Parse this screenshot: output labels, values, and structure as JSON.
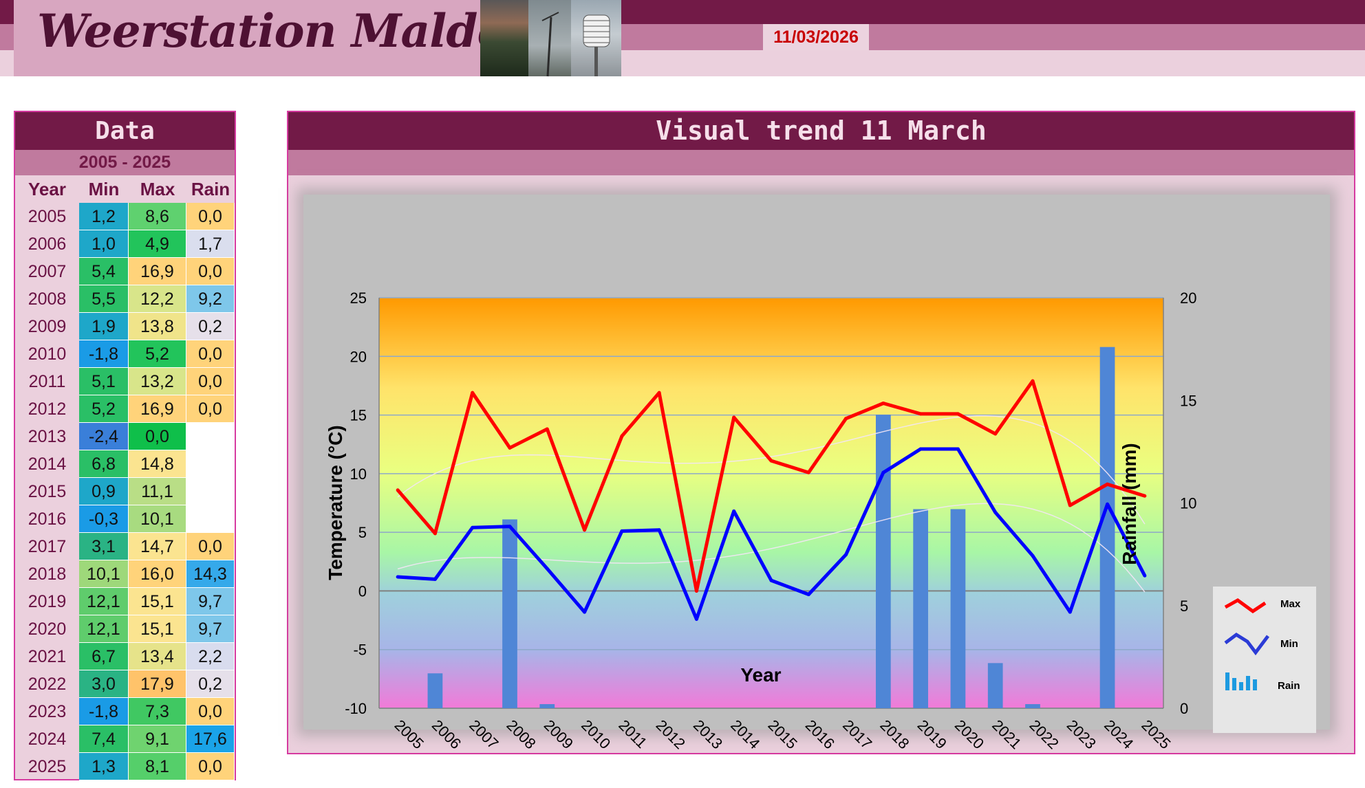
{
  "header": {
    "title": "Weerstation Malderen",
    "date": "11/03/2026",
    "photos": [
      "sunset-photo",
      "mast-photo",
      "screen-photo"
    ]
  },
  "data_table": {
    "title": "Data",
    "range": "2005 - 2025",
    "columns": [
      "Year",
      "Min",
      "Max",
      "Rain"
    ],
    "rows": [
      {
        "year": "2005",
        "min": "1,2",
        "max": "8,6",
        "rain": "0,0",
        "min_color": "#1ea7c9",
        "max_color": "#5fd16f",
        "rain_color": "#ffd37a"
      },
      {
        "year": "2006",
        "min": "1,0",
        "max": "4,9",
        "rain": "1,7",
        "min_color": "#1ea7c9",
        "max_color": "#22c45b",
        "rain_color": "#dadeee"
      },
      {
        "year": "2007",
        "min": "5,4",
        "max": "16,9",
        "rain": "0,0",
        "min_color": "#2abf66",
        "max_color": "#ffd37a",
        "rain_color": "#ffd37a"
      },
      {
        "year": "2008",
        "min": "5,5",
        "max": "12,2",
        "rain": "9,2",
        "min_color": "#2abf66",
        "max_color": "#d8e58a",
        "rain_color": "#7ec7ea"
      },
      {
        "year": "2009",
        "min": "1,9",
        "max": "13,8",
        "rain": "0,2",
        "min_color": "#1ea7c9",
        "max_color": "#f0e48a",
        "rain_color": "#e6e0ea"
      },
      {
        "year": "2010",
        "min": "-1,8",
        "max": "5,2",
        "rain": "0,0",
        "min_color": "#1a9be6",
        "max_color": "#22c45b",
        "rain_color": "#ffd37a"
      },
      {
        "year": "2011",
        "min": "5,1",
        "max": "13,2",
        "rain": "0,0",
        "min_color": "#2abf66",
        "max_color": "#d8e58a",
        "rain_color": "#ffd37a"
      },
      {
        "year": "2012",
        "min": "5,2",
        "max": "16,9",
        "rain": "0,0",
        "min_color": "#2abf66",
        "max_color": "#ffd37a",
        "rain_color": "#ffd37a"
      },
      {
        "year": "2013",
        "min": "-2,4",
        "max": "0,0",
        "rain": "",
        "min_color": "#3a7fd9",
        "max_color": "#0fbf4a",
        "rain_color": "#ffffff"
      },
      {
        "year": "2014",
        "min": "6,8",
        "max": "14,8",
        "rain": "",
        "min_color": "#2abf66",
        "max_color": "#fbe490",
        "rain_color": "#ffffff"
      },
      {
        "year": "2015",
        "min": "0,9",
        "max": "11,1",
        "rain": "",
        "min_color": "#1ea7c9",
        "max_color": "#b9de86",
        "rain_color": "#ffffff"
      },
      {
        "year": "2016",
        "min": "-0,3",
        "max": "10,1",
        "rain": "",
        "min_color": "#1a9be6",
        "max_color": "#a8db80",
        "rain_color": "#ffffff"
      },
      {
        "year": "2017",
        "min": "3,1",
        "max": "14,7",
        "rain": "0,0",
        "min_color": "#2ab384",
        "max_color": "#fbe490",
        "rain_color": "#ffd37a"
      },
      {
        "year": "2018",
        "min": "10,1",
        "max": "16,0",
        "rain": "14,3",
        "min_color": "#9ed87a",
        "max_color": "#ffd37a",
        "rain_color": "#35a9ea"
      },
      {
        "year": "2019",
        "min": "12,1",
        "max": "15,1",
        "rain": "9,7",
        "min_color": "#5fcc6c",
        "max_color": "#fbe490",
        "rain_color": "#7ec7ea"
      },
      {
        "year": "2020",
        "min": "12,1",
        "max": "15,1",
        "rain": "9,7",
        "min_color": "#5fcc6c",
        "max_color": "#fbe490",
        "rain_color": "#7ec7ea"
      },
      {
        "year": "2021",
        "min": "6,7",
        "max": "13,4",
        "rain": "2,2",
        "min_color": "#2abf66",
        "max_color": "#e6e38a",
        "rain_color": "#d8dcee"
      },
      {
        "year": "2022",
        "min": "3,0",
        "max": "17,9",
        "rain": "0,2",
        "min_color": "#2ab384",
        "max_color": "#ffc36a",
        "rain_color": "#e6e0ea"
      },
      {
        "year": "2023",
        "min": "-1,8",
        "max": "7,3",
        "rain": "0,0",
        "min_color": "#1a9be6",
        "max_color": "#40c862",
        "rain_color": "#ffd37a"
      },
      {
        "year": "2024",
        "min": "7,4",
        "max": "9,1",
        "rain": "17,6",
        "min_color": "#2abf66",
        "max_color": "#6fd36f",
        "rain_color": "#1aa3e8"
      },
      {
        "year": "2025",
        "min": "1,3",
        "max": "8,1",
        "rain": "0,0",
        "min_color": "#1ea7c9",
        "max_color": "#55cf6a",
        "rain_color": "#ffd37a"
      }
    ]
  },
  "chart_panel": {
    "title": "Visual  trend 11 March"
  },
  "chart_data": {
    "type": "line",
    "x": [
      "2005",
      "2006",
      "2007",
      "2008",
      "2009",
      "2010",
      "2011",
      "2012",
      "2013",
      "2014",
      "2015",
      "2016",
      "2017",
      "2018",
      "2019",
      "2020",
      "2021",
      "2022",
      "2023",
      "2024",
      "2025"
    ],
    "xlabel": "Year",
    "ylabel": "Temperature (°C)",
    "y2label": "Rainfall (mm)",
    "ylim": [
      -10,
      25
    ],
    "y2lim": [
      0,
      20
    ],
    "yticks": [
      "25",
      "20",
      "15",
      "10",
      "5",
      "0",
      "-5",
      "-10"
    ],
    "y2ticks": [
      "20",
      "15",
      "10",
      "5",
      "0"
    ],
    "grid": true,
    "legend_position": "bottom-right",
    "series": [
      {
        "name": "Max",
        "type": "line",
        "axis": "left",
        "color": "#ff0000",
        "values": [
          8.6,
          4.9,
          16.9,
          12.2,
          13.8,
          5.2,
          13.2,
          16.9,
          0.0,
          14.8,
          11.1,
          10.1,
          14.7,
          16.0,
          15.1,
          15.1,
          13.4,
          17.9,
          7.3,
          9.1,
          8.1
        ]
      },
      {
        "name": "Min",
        "type": "line",
        "axis": "left",
        "color": "#0000ff",
        "values": [
          1.2,
          1.0,
          5.4,
          5.5,
          1.9,
          -1.8,
          5.1,
          5.2,
          -2.4,
          6.8,
          0.9,
          -0.3,
          3.1,
          10.1,
          12.1,
          12.1,
          6.7,
          3.0,
          -1.8,
          7.4,
          1.3
        ]
      },
      {
        "name": "Rain",
        "type": "bar",
        "axis": "right",
        "color": "#4f86d6",
        "values": [
          0.0,
          1.7,
          0.0,
          9.2,
          0.2,
          0.0,
          0.0,
          0.0,
          null,
          null,
          null,
          null,
          0.0,
          14.3,
          9.7,
          9.7,
          2.2,
          0.2,
          0.0,
          17.6,
          0.0
        ]
      }
    ]
  }
}
